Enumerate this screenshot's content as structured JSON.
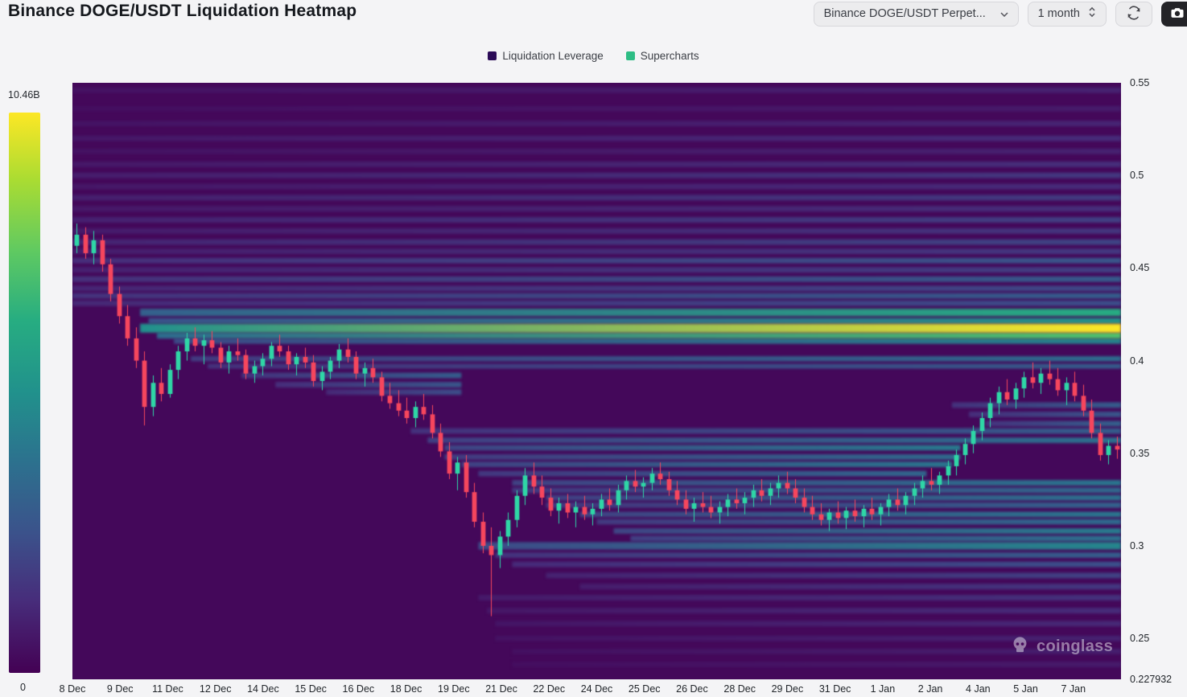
{
  "header": {
    "title": "Binance DOGE/USDT Liquidation Heatmap",
    "pair_select": "Binance DOGE/USDT Perpet...",
    "range_select": "1 month"
  },
  "legend": [
    {
      "label": "Liquidation Leverage",
      "color": "#2b0b57"
    },
    {
      "label": "Supercharts",
      "color": "#2ebd85"
    }
  ],
  "colorbar": {
    "max_label": "10.46B",
    "min_label": "0"
  },
  "watermark": {
    "text": "coinglass"
  },
  "chart_data": {
    "type": "heatmap",
    "overlay": "candlestick",
    "title": "Binance DOGE/USDT Liquidation Heatmap",
    "y_axis": {
      "min": 0.227932,
      "max": 0.55,
      "ticks": [
        0.55,
        0.5,
        0.45,
        0.4,
        0.35,
        0.3,
        0.25,
        0.227932
      ],
      "tick_labels": [
        "0.55",
        "0.5",
        "0.45",
        "0.4",
        "0.35",
        "0.3",
        "0.25",
        "0.227932"
      ]
    },
    "x_axis": {
      "tick_labels": [
        "8 Dec",
        "9 Dec",
        "11 Dec",
        "12 Dec",
        "14 Dec",
        "15 Dec",
        "16 Dec",
        "18 Dec",
        "19 Dec",
        "21 Dec",
        "22 Dec",
        "24 Dec",
        "25 Dec",
        "26 Dec",
        "28 Dec",
        "29 Dec",
        "31 Dec",
        "1 Jan",
        "2 Jan",
        "4 Jan",
        "5 Jan",
        "7 Jan"
      ]
    },
    "colorbar": {
      "min_label": "0",
      "max_label": "10.46B",
      "colormap": "viridis"
    },
    "colors": {
      "up": "#2fd6a6",
      "down": "#f6465d",
      "background_intensity": 0.02
    },
    "band_fields": [
      "price",
      "start_index",
      "end_index",
      "intensity",
      "thickness"
    ],
    "liquidation_bands": [
      [
        0.546,
        0,
        124,
        0.1
      ],
      [
        0.536,
        0,
        124,
        0.08
      ],
      [
        0.528,
        0,
        124,
        0.11
      ],
      [
        0.52,
        0,
        124,
        0.13
      ],
      [
        0.513,
        0,
        124,
        0.1
      ],
      [
        0.506,
        0,
        124,
        0.14
      ],
      [
        0.5,
        0,
        124,
        0.17
      ],
      [
        0.494,
        0,
        124,
        0.13
      ],
      [
        0.488,
        0,
        124,
        0.18
      ],
      [
        0.482,
        0,
        124,
        0.14
      ],
      [
        0.476,
        0,
        124,
        0.19
      ],
      [
        0.47,
        0,
        124,
        0.16
      ],
      [
        0.464,
        0,
        124,
        0.21
      ],
      [
        0.459,
        0,
        124,
        0.17
      ],
      [
        0.454,
        0,
        124,
        0.27
      ],
      [
        0.449,
        0,
        124,
        0.19
      ],
      [
        0.444,
        0,
        124,
        0.29
      ],
      [
        0.439,
        0,
        124,
        0.22
      ],
      [
        0.435,
        0,
        124,
        0.3
      ],
      [
        0.431,
        0,
        124,
        0.24
      ],
      [
        0.426,
        8,
        124,
        0.62,
        0.004
      ],
      [
        0.4215,
        9,
        124,
        0.52,
        0.003
      ],
      [
        0.4175,
        8,
        124,
        1.0,
        0.0048
      ],
      [
        0.4135,
        10,
        124,
        0.72,
        0.0032
      ],
      [
        0.4105,
        12,
        124,
        0.46,
        0.0028
      ],
      [
        0.401,
        14,
        124,
        0.36,
        0.0028
      ],
      [
        0.397,
        16,
        124,
        0.3,
        0.0026
      ],
      [
        0.392,
        20,
        46,
        0.3
      ],
      [
        0.387,
        24,
        46,
        0.27
      ],
      [
        0.383,
        30,
        46,
        0.24
      ],
      [
        0.362,
        40,
        124,
        0.3
      ],
      [
        0.357,
        42,
        124,
        0.38
      ],
      [
        0.353,
        44,
        105,
        0.42
      ],
      [
        0.348,
        44,
        105,
        0.35
      ],
      [
        0.344,
        46,
        104,
        0.4
      ],
      [
        0.339,
        48,
        101,
        0.34
      ],
      [
        0.334,
        52,
        124,
        0.4
      ],
      [
        0.33,
        52,
        124,
        0.34
      ],
      [
        0.326,
        56,
        124,
        0.38
      ],
      [
        0.322,
        56,
        124,
        0.32
      ],
      [
        0.317,
        60,
        124,
        0.4
      ],
      [
        0.313,
        62,
        124,
        0.35
      ],
      [
        0.308,
        64,
        124,
        0.42
      ],
      [
        0.304,
        66,
        124,
        0.38
      ],
      [
        0.3,
        48,
        124,
        0.46,
        0.004
      ],
      [
        0.295,
        50,
        124,
        0.3
      ],
      [
        0.29,
        52,
        124,
        0.25
      ],
      [
        0.284,
        56,
        124,
        0.2
      ],
      [
        0.278,
        60,
        124,
        0.17
      ],
      [
        0.272,
        48,
        124,
        0.15
      ],
      [
        0.265,
        49,
        124,
        0.13
      ],
      [
        0.258,
        50,
        124,
        0.12
      ],
      [
        0.25,
        50,
        124,
        0.1
      ],
      [
        0.243,
        52,
        124,
        0.09
      ],
      [
        0.236,
        52,
        124,
        0.08
      ],
      [
        0.376,
        104,
        124,
        0.3
      ],
      [
        0.371,
        106,
        124,
        0.27
      ],
      [
        0.366,
        108,
        124,
        0.31
      ]
    ],
    "candle_fields": [
      "open",
      "high",
      "low",
      "close"
    ],
    "candles": [
      [
        0.462,
        0.474,
        0.458,
        0.468
      ],
      [
        0.468,
        0.472,
        0.455,
        0.458
      ],
      [
        0.458,
        0.47,
        0.452,
        0.465
      ],
      [
        0.465,
        0.468,
        0.448,
        0.452
      ],
      [
        0.452,
        0.455,
        0.432,
        0.436
      ],
      [
        0.436,
        0.44,
        0.42,
        0.424
      ],
      [
        0.424,
        0.43,
        0.408,
        0.412
      ],
      [
        0.412,
        0.418,
        0.396,
        0.4
      ],
      [
        0.4,
        0.405,
        0.365,
        0.375
      ],
      [
        0.375,
        0.392,
        0.37,
        0.388
      ],
      [
        0.388,
        0.396,
        0.378,
        0.382
      ],
      [
        0.382,
        0.398,
        0.38,
        0.395
      ],
      [
        0.395,
        0.408,
        0.39,
        0.405
      ],
      [
        0.405,
        0.415,
        0.4,
        0.412
      ],
      [
        0.412,
        0.418,
        0.405,
        0.408
      ],
      [
        0.408,
        0.414,
        0.398,
        0.411
      ],
      [
        0.411,
        0.416,
        0.404,
        0.407
      ],
      [
        0.407,
        0.41,
        0.396,
        0.399
      ],
      [
        0.399,
        0.408,
        0.393,
        0.405
      ],
      [
        0.405,
        0.412,
        0.4,
        0.403
      ],
      [
        0.403,
        0.406,
        0.39,
        0.393
      ],
      [
        0.393,
        0.4,
        0.388,
        0.397
      ],
      [
        0.397,
        0.404,
        0.392,
        0.401
      ],
      [
        0.401,
        0.41,
        0.397,
        0.408
      ],
      [
        0.408,
        0.414,
        0.402,
        0.405
      ],
      [
        0.405,
        0.408,
        0.395,
        0.398
      ],
      [
        0.398,
        0.404,
        0.392,
        0.402
      ],
      [
        0.402,
        0.407,
        0.396,
        0.399
      ],
      [
        0.399,
        0.403,
        0.386,
        0.389
      ],
      [
        0.389,
        0.397,
        0.384,
        0.394
      ],
      [
        0.394,
        0.402,
        0.39,
        0.4
      ],
      [
        0.4,
        0.409,
        0.396,
        0.406
      ],
      [
        0.406,
        0.412,
        0.399,
        0.402
      ],
      [
        0.402,
        0.405,
        0.39,
        0.393
      ],
      [
        0.393,
        0.399,
        0.386,
        0.396
      ],
      [
        0.396,
        0.401,
        0.388,
        0.391
      ],
      [
        0.391,
        0.394,
        0.378,
        0.381
      ],
      [
        0.381,
        0.388,
        0.374,
        0.377
      ],
      [
        0.377,
        0.384,
        0.37,
        0.373
      ],
      [
        0.373,
        0.38,
        0.366,
        0.369
      ],
      [
        0.369,
        0.378,
        0.364,
        0.375
      ],
      [
        0.375,
        0.382,
        0.368,
        0.371
      ],
      [
        0.371,
        0.376,
        0.358,
        0.361
      ],
      [
        0.361,
        0.366,
        0.348,
        0.351
      ],
      [
        0.351,
        0.356,
        0.336,
        0.339
      ],
      [
        0.339,
        0.348,
        0.33,
        0.345
      ],
      [
        0.345,
        0.349,
        0.326,
        0.329
      ],
      [
        0.329,
        0.334,
        0.31,
        0.313
      ],
      [
        0.313,
        0.318,
        0.296,
        0.3
      ],
      [
        0.3,
        0.31,
        0.262,
        0.295
      ],
      [
        0.295,
        0.308,
        0.288,
        0.305
      ],
      [
        0.305,
        0.318,
        0.3,
        0.314
      ],
      [
        0.314,
        0.33,
        0.31,
        0.327
      ],
      [
        0.327,
        0.342,
        0.322,
        0.338
      ],
      [
        0.338,
        0.345,
        0.328,
        0.332
      ],
      [
        0.332,
        0.338,
        0.322,
        0.326
      ],
      [
        0.326,
        0.331,
        0.316,
        0.319
      ],
      [
        0.319,
        0.326,
        0.312,
        0.323
      ],
      [
        0.323,
        0.328,
        0.315,
        0.318
      ],
      [
        0.318,
        0.324,
        0.31,
        0.321
      ],
      [
        0.321,
        0.327,
        0.314,
        0.317
      ],
      [
        0.317,
        0.323,
        0.311,
        0.32
      ],
      [
        0.32,
        0.328,
        0.316,
        0.325
      ],
      [
        0.325,
        0.331,
        0.319,
        0.322
      ],
      [
        0.322,
        0.333,
        0.318,
        0.33
      ],
      [
        0.33,
        0.338,
        0.325,
        0.335
      ],
      [
        0.335,
        0.341,
        0.329,
        0.332
      ],
      [
        0.332,
        0.337,
        0.326,
        0.334
      ],
      [
        0.334,
        0.342,
        0.33,
        0.339
      ],
      [
        0.339,
        0.345,
        0.333,
        0.336
      ],
      [
        0.336,
        0.34,
        0.327,
        0.33
      ],
      [
        0.33,
        0.335,
        0.322,
        0.325
      ],
      [
        0.325,
        0.33,
        0.317,
        0.32
      ],
      [
        0.32,
        0.326,
        0.313,
        0.323
      ],
      [
        0.323,
        0.329,
        0.318,
        0.321
      ],
      [
        0.321,
        0.327,
        0.315,
        0.318
      ],
      [
        0.318,
        0.324,
        0.312,
        0.321
      ],
      [
        0.321,
        0.328,
        0.316,
        0.325
      ],
      [
        0.325,
        0.331,
        0.32,
        0.323
      ],
      [
        0.323,
        0.329,
        0.317,
        0.326
      ],
      [
        0.326,
        0.333,
        0.321,
        0.33
      ],
      [
        0.33,
        0.336,
        0.324,
        0.327
      ],
      [
        0.327,
        0.334,
        0.322,
        0.331
      ],
      [
        0.331,
        0.338,
        0.326,
        0.334
      ],
      [
        0.334,
        0.34,
        0.328,
        0.331
      ],
      [
        0.331,
        0.336,
        0.323,
        0.326
      ],
      [
        0.326,
        0.331,
        0.318,
        0.321
      ],
      [
        0.321,
        0.327,
        0.314,
        0.317
      ],
      [
        0.317,
        0.323,
        0.311,
        0.314
      ],
      [
        0.314,
        0.32,
        0.308,
        0.318
      ],
      [
        0.318,
        0.324,
        0.312,
        0.315
      ],
      [
        0.315,
        0.321,
        0.309,
        0.319
      ],
      [
        0.319,
        0.325,
        0.313,
        0.316
      ],
      [
        0.316,
        0.322,
        0.31,
        0.32
      ],
      [
        0.32,
        0.326,
        0.314,
        0.317
      ],
      [
        0.317,
        0.323,
        0.311,
        0.321
      ],
      [
        0.321,
        0.328,
        0.316,
        0.325
      ],
      [
        0.325,
        0.331,
        0.319,
        0.322
      ],
      [
        0.322,
        0.329,
        0.317,
        0.327
      ],
      [
        0.327,
        0.334,
        0.322,
        0.331
      ],
      [
        0.331,
        0.338,
        0.326,
        0.335
      ],
      [
        0.335,
        0.342,
        0.33,
        0.333
      ],
      [
        0.333,
        0.34,
        0.328,
        0.338
      ],
      [
        0.338,
        0.346,
        0.333,
        0.343
      ],
      [
        0.343,
        0.352,
        0.338,
        0.349
      ],
      [
        0.349,
        0.358,
        0.344,
        0.355
      ],
      [
        0.355,
        0.365,
        0.35,
        0.362
      ],
      [
        0.362,
        0.372,
        0.357,
        0.369
      ],
      [
        0.369,
        0.38,
        0.364,
        0.377
      ],
      [
        0.377,
        0.386,
        0.371,
        0.383
      ],
      [
        0.383,
        0.39,
        0.376,
        0.379
      ],
      [
        0.379,
        0.388,
        0.374,
        0.385
      ],
      [
        0.385,
        0.394,
        0.38,
        0.391
      ],
      [
        0.391,
        0.399,
        0.385,
        0.388
      ],
      [
        0.388,
        0.396,
        0.382,
        0.393
      ],
      [
        0.393,
        0.4,
        0.387,
        0.39
      ],
      [
        0.39,
        0.396,
        0.381,
        0.384
      ],
      [
        0.384,
        0.391,
        0.376,
        0.388
      ],
      [
        0.388,
        0.394,
        0.378,
        0.381
      ],
      [
        0.381,
        0.387,
        0.37,
        0.373
      ],
      [
        0.373,
        0.379,
        0.358,
        0.361
      ],
      [
        0.361,
        0.366,
        0.346,
        0.349
      ],
      [
        0.349,
        0.357,
        0.344,
        0.354
      ],
      [
        0.354,
        0.359,
        0.347,
        0.352
      ]
    ]
  }
}
